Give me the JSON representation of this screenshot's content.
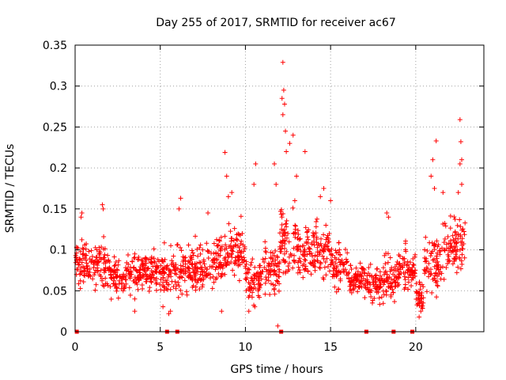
{
  "chart_data": {
    "type": "scatter",
    "title": "Day 255 of 2017, SRMTID for receiver ac67",
    "xlabel": "GPS time / hours",
    "ylabel": "SRMTID / TECUs",
    "xlim": [
      0,
      24
    ],
    "ylim": [
      0,
      0.35
    ],
    "xticks": [
      0,
      5,
      10,
      15,
      20
    ],
    "xtick_labels": [
      "0",
      "5",
      "10",
      "15",
      "20"
    ],
    "yticks": [
      0,
      0.05,
      0.1,
      0.15,
      0.2,
      0.25,
      0.3,
      0.35
    ],
    "ytick_labels": [
      "0",
      "0.05",
      "0.1",
      "0.15",
      "0.2",
      "0.25",
      "0.3",
      "0.35"
    ],
    "grid": true,
    "marker": "+",
    "color": "#ff0000",
    "zero_markers_x": [
      0.1,
      5.4,
      6.0,
      12.1,
      17.1,
      18.7,
      19.8
    ],
    "segments": [
      {
        "t0": 0.0,
        "t1": 1.0,
        "base": 0.085,
        "amp": 0.025,
        "n": 70
      },
      {
        "t0": 1.0,
        "t1": 2.0,
        "base": 0.078,
        "amp": 0.025,
        "n": 70
      },
      {
        "t0": 2.0,
        "t1": 3.0,
        "base": 0.068,
        "amp": 0.022,
        "n": 70
      },
      {
        "t0": 3.0,
        "t1": 4.0,
        "base": 0.072,
        "amp": 0.022,
        "n": 70
      },
      {
        "t0": 4.0,
        "t1": 5.0,
        "base": 0.075,
        "amp": 0.025,
        "n": 70
      },
      {
        "t0": 5.0,
        "t1": 6.0,
        "base": 0.072,
        "amp": 0.03,
        "n": 70
      },
      {
        "t0": 6.0,
        "t1": 7.0,
        "base": 0.075,
        "amp": 0.03,
        "n": 70
      },
      {
        "t0": 7.0,
        "t1": 8.0,
        "base": 0.08,
        "amp": 0.025,
        "n": 70
      },
      {
        "t0": 8.0,
        "t1": 9.0,
        "base": 0.09,
        "amp": 0.03,
        "n": 70
      },
      {
        "t0": 9.0,
        "t1": 10.0,
        "base": 0.095,
        "amp": 0.03,
        "n": 70
      },
      {
        "t0": 10.0,
        "t1": 11.0,
        "base": 0.062,
        "amp": 0.025,
        "n": 70
      },
      {
        "t0": 11.0,
        "t1": 12.0,
        "base": 0.075,
        "amp": 0.03,
        "n": 70
      },
      {
        "t0": 12.0,
        "t1": 13.0,
        "base": 0.11,
        "amp": 0.04,
        "n": 70
      },
      {
        "t0": 13.0,
        "t1": 14.0,
        "base": 0.095,
        "amp": 0.035,
        "n": 70
      },
      {
        "t0": 14.0,
        "t1": 15.0,
        "base": 0.1,
        "amp": 0.035,
        "n": 70
      },
      {
        "t0": 15.0,
        "t1": 16.0,
        "base": 0.08,
        "amp": 0.025,
        "n": 70
      },
      {
        "t0": 16.0,
        "t1": 17.0,
        "base": 0.065,
        "amp": 0.02,
        "n": 70
      },
      {
        "t0": 17.0,
        "t1": 18.0,
        "base": 0.06,
        "amp": 0.022,
        "n": 70
      },
      {
        "t0": 18.0,
        "t1": 19.0,
        "base": 0.065,
        "amp": 0.025,
        "n": 70
      },
      {
        "t0": 19.0,
        "t1": 20.0,
        "base": 0.075,
        "amp": 0.025,
        "n": 70
      },
      {
        "t0": 20.0,
        "t1": 20.5,
        "base": 0.045,
        "amp": 0.018,
        "n": 35
      },
      {
        "t0": 20.5,
        "t1": 21.5,
        "base": 0.085,
        "amp": 0.035,
        "n": 70
      },
      {
        "t0": 21.5,
        "t1": 22.9,
        "base": 0.105,
        "amp": 0.035,
        "n": 90
      }
    ],
    "peaks": [
      {
        "x": 12.2,
        "y": 0.329
      },
      {
        "x": 12.25,
        "y": 0.295
      },
      {
        "x": 12.15,
        "y": 0.285
      },
      {
        "x": 12.3,
        "y": 0.278
      },
      {
        "x": 12.2,
        "y": 0.265
      },
      {
        "x": 12.35,
        "y": 0.245
      },
      {
        "x": 12.4,
        "y": 0.22
      },
      {
        "x": 12.6,
        "y": 0.23
      },
      {
        "x": 12.8,
        "y": 0.24
      },
      {
        "x": 13.5,
        "y": 0.22
      },
      {
        "x": 11.7,
        "y": 0.205
      },
      {
        "x": 11.8,
        "y": 0.18
      },
      {
        "x": 8.8,
        "y": 0.219
      },
      {
        "x": 8.9,
        "y": 0.19
      },
      {
        "x": 9.2,
        "y": 0.17
      },
      {
        "x": 9.0,
        "y": 0.165
      },
      {
        "x": 10.6,
        "y": 0.205
      },
      {
        "x": 10.5,
        "y": 0.18
      },
      {
        "x": 22.6,
        "y": 0.259
      },
      {
        "x": 22.65,
        "y": 0.232
      },
      {
        "x": 22.7,
        "y": 0.21
      },
      {
        "x": 22.6,
        "y": 0.205
      },
      {
        "x": 22.7,
        "y": 0.18
      },
      {
        "x": 22.5,
        "y": 0.17
      },
      {
        "x": 21.2,
        "y": 0.233
      },
      {
        "x": 21.0,
        "y": 0.21
      },
      {
        "x": 20.9,
        "y": 0.19
      },
      {
        "x": 21.1,
        "y": 0.175
      },
      {
        "x": 21.6,
        "y": 0.17
      },
      {
        "x": 1.6,
        "y": 0.155
      },
      {
        "x": 1.65,
        "y": 0.15
      },
      {
        "x": 0.4,
        "y": 0.145
      },
      {
        "x": 0.35,
        "y": 0.14
      },
      {
        "x": 6.2,
        "y": 0.163
      },
      {
        "x": 6.1,
        "y": 0.15
      },
      {
        "x": 7.8,
        "y": 0.145
      },
      {
        "x": 14.4,
        "y": 0.165
      },
      {
        "x": 14.6,
        "y": 0.175
      },
      {
        "x": 15.0,
        "y": 0.16
      },
      {
        "x": 18.3,
        "y": 0.145
      },
      {
        "x": 18.4,
        "y": 0.14
      },
      {
        "x": 13.0,
        "y": 0.19
      },
      {
        "x": 12.9,
        "y": 0.16
      },
      {
        "x": 11.9,
        "y": 0.007
      },
      {
        "x": 5.5,
        "y": 0.022
      },
      {
        "x": 5.6,
        "y": 0.025
      },
      {
        "x": 20.2,
        "y": 0.018
      },
      {
        "x": 20.3,
        "y": 0.025
      },
      {
        "x": 3.5,
        "y": 0.025
      },
      {
        "x": 8.6,
        "y": 0.025
      },
      {
        "x": 10.2,
        "y": 0.025
      }
    ]
  }
}
